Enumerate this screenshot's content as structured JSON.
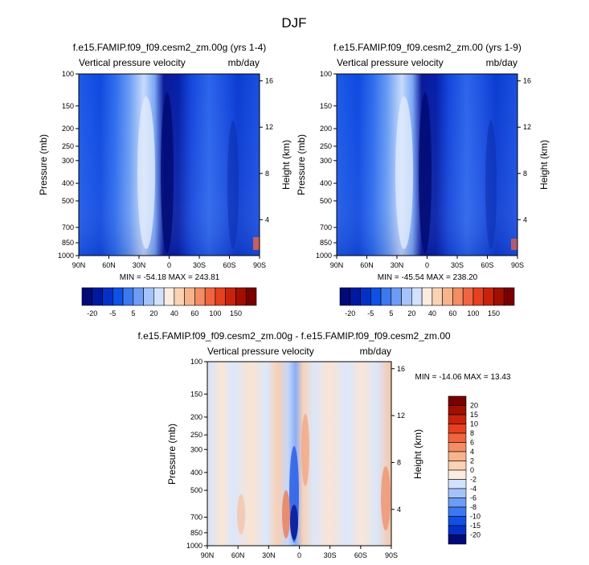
{
  "figure": {
    "title": "DJF"
  },
  "chart_data": [
    {
      "type": "heatmap",
      "title": "f.e15.FAMIP.f09_f09.cesm2_zm.00g (yrs 1-4)",
      "subtitle_left": "Vertical pressure velocity",
      "subtitle_right": "mb/day",
      "xlabel": "",
      "ylabel": "Pressure (mb)",
      "ylabel_right": "Height (km)",
      "x_ticks": [
        "90N",
        "60N",
        "30N",
        "0",
        "30S",
        "60S",
        "90S"
      ],
      "x_values": [
        90,
        60,
        30,
        0,
        -30,
        -60,
        -90
      ],
      "y_ticks": [
        "100",
        "150",
        "200",
        "250",
        "300",
        "400",
        "500",
        "700",
        "850",
        "1000"
      ],
      "y_values": [
        100,
        150,
        200,
        250,
        300,
        400,
        500,
        700,
        850,
        1000
      ],
      "y_scale": "log",
      "y_reversed": true,
      "right_ticks": [
        "16",
        "12",
        "8",
        "4"
      ],
      "right_values": [
        16,
        12,
        8,
        4
      ],
      "stats": "MIN = -54.18   MAX = 243.81",
      "min": -54.18,
      "max": 243.81
    },
    {
      "type": "heatmap",
      "title": "f.e15.FAMIP.f09_f09.cesm2_zm.00 (yrs 1-9)",
      "subtitle_left": "Vertical pressure velocity",
      "subtitle_right": "mb/day",
      "xlabel": "",
      "ylabel": "Pressure (mb)",
      "ylabel_right": "Height (km)",
      "x_ticks": [
        "90N",
        "60N",
        "30N",
        "0",
        "30S",
        "60S",
        "90S"
      ],
      "x_values": [
        90,
        60,
        30,
        0,
        -30,
        -60,
        -90
      ],
      "y_ticks": [
        "100",
        "150",
        "200",
        "250",
        "300",
        "400",
        "500",
        "700",
        "850",
        "1000"
      ],
      "y_values": [
        100,
        150,
        200,
        250,
        300,
        400,
        500,
        700,
        850,
        1000
      ],
      "y_scale": "log",
      "y_reversed": true,
      "right_ticks": [
        "16",
        "12",
        "8",
        "4"
      ],
      "right_values": [
        16,
        12,
        8,
        4
      ],
      "stats": "MIN = -45.54   MAX = 238.20",
      "min": -45.54,
      "max": 238.2
    },
    {
      "type": "heatmap",
      "title": "f.e15.FAMIP.f09_f09.cesm2_zm.00g - f.e15.FAMIP.f09_f09.cesm2_zm.00",
      "subtitle_left": "Vertical pressure velocity",
      "subtitle_right": "mb/day",
      "xlabel": "",
      "ylabel": "Pressure (mb)",
      "ylabel_right": "Height (km)",
      "x_ticks": [
        "90N",
        "60N",
        "30N",
        "0",
        "30S",
        "60S",
        "90S"
      ],
      "x_values": [
        90,
        60,
        30,
        0,
        -30,
        -60,
        -90
      ],
      "y_ticks": [
        "100",
        "150",
        "200",
        "250",
        "300",
        "400",
        "500",
        "700",
        "850",
        "1000"
      ],
      "y_values": [
        100,
        150,
        200,
        250,
        300,
        400,
        500,
        700,
        850,
        1000
      ],
      "y_scale": "log",
      "y_reversed": true,
      "right_ticks": [
        "16",
        "12",
        "8",
        "4"
      ],
      "right_values": [
        16,
        12,
        8,
        4
      ],
      "stats": "MIN = -14.06   MAX = 13.43",
      "min": -14.06,
      "max": 13.43
    }
  ],
  "colorbars": {
    "top": {
      "labels": [
        "-20",
        "-5",
        "5",
        "20",
        "40",
        "60",
        "100",
        "150"
      ],
      "colors": [
        "#000a78",
        "#0019a0",
        "#0530c8",
        "#0f50e6",
        "#3c78f0",
        "#6e9cf5",
        "#a5c3fa",
        "#d2e1fc",
        "#fcece0",
        "#fad2b4",
        "#f7b48c",
        "#f48c64",
        "#f06440",
        "#e6401e",
        "#c8230a",
        "#a00f00",
        "#780000"
      ]
    },
    "bottom": {
      "labels": [
        "20",
        "15",
        "10",
        "8",
        "6",
        "4",
        "2",
        "0",
        "-2",
        "-4",
        "-6",
        "-8",
        "-10",
        "-15",
        "-20"
      ],
      "colors": [
        "#780000",
        "#a00f00",
        "#c8230a",
        "#e6401e",
        "#f06440",
        "#f48c64",
        "#f7b48c",
        "#fad2b4",
        "#fcece0",
        "#d2e1fc",
        "#a5c3fa",
        "#6e9cf5",
        "#3c78f0",
        "#0f50e6",
        "#0530c8",
        "#000a78"
      ]
    }
  }
}
